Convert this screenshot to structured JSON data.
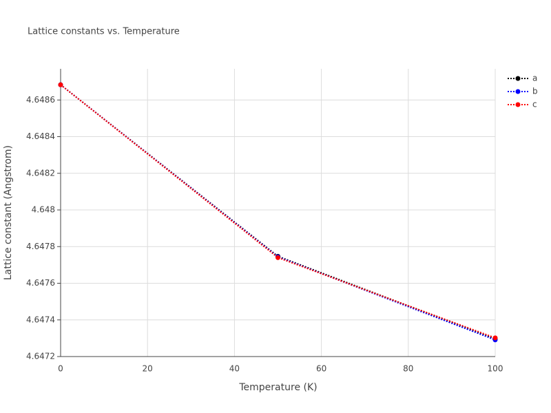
{
  "chart_data": {
    "type": "line",
    "title": "Lattice constants vs. Temperature",
    "x_label": "Temperature (K)",
    "y_label": "Lattice constant (Angstrom)",
    "x": [
      0,
      50,
      100
    ],
    "series": [
      {
        "name": "a",
        "color": "#000000",
        "values": [
          4.648683,
          4.647747,
          4.647296
        ]
      },
      {
        "name": "b",
        "color": "#0000ff",
        "values": [
          4.648683,
          4.647744,
          4.647291
        ]
      },
      {
        "name": "c",
        "color": "#ff0000",
        "values": [
          4.648683,
          4.64774,
          4.647302
        ]
      }
    ],
    "xlim": [
      0,
      100
    ],
    "xticks": [
      0,
      20,
      40,
      60,
      80,
      100
    ],
    "ylim": [
      4.6472,
      4.64877
    ],
    "yticks": [
      4.6472,
      4.6474,
      4.6476,
      4.6478,
      4.648,
      4.6482,
      4.6484,
      4.6486
    ],
    "grid": true,
    "legend": "top-right"
  }
}
